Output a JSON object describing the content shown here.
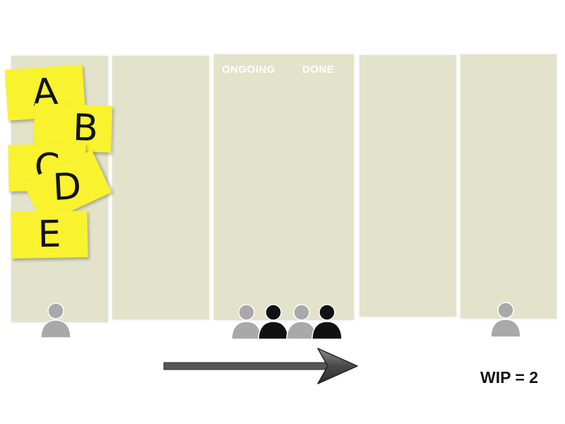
{
  "board": {
    "headers": {
      "ongoing": "ONGOING",
      "done": "DONE"
    },
    "notes": [
      "A",
      "B",
      "C",
      "D",
      "E"
    ],
    "wip_label": "WIP = 2"
  },
  "colors": {
    "column": "#e3e3cb",
    "sticky": "#f8f22f",
    "person_gray": "#a9a9a9",
    "person_black": "#111111",
    "arrow": "#555555"
  }
}
